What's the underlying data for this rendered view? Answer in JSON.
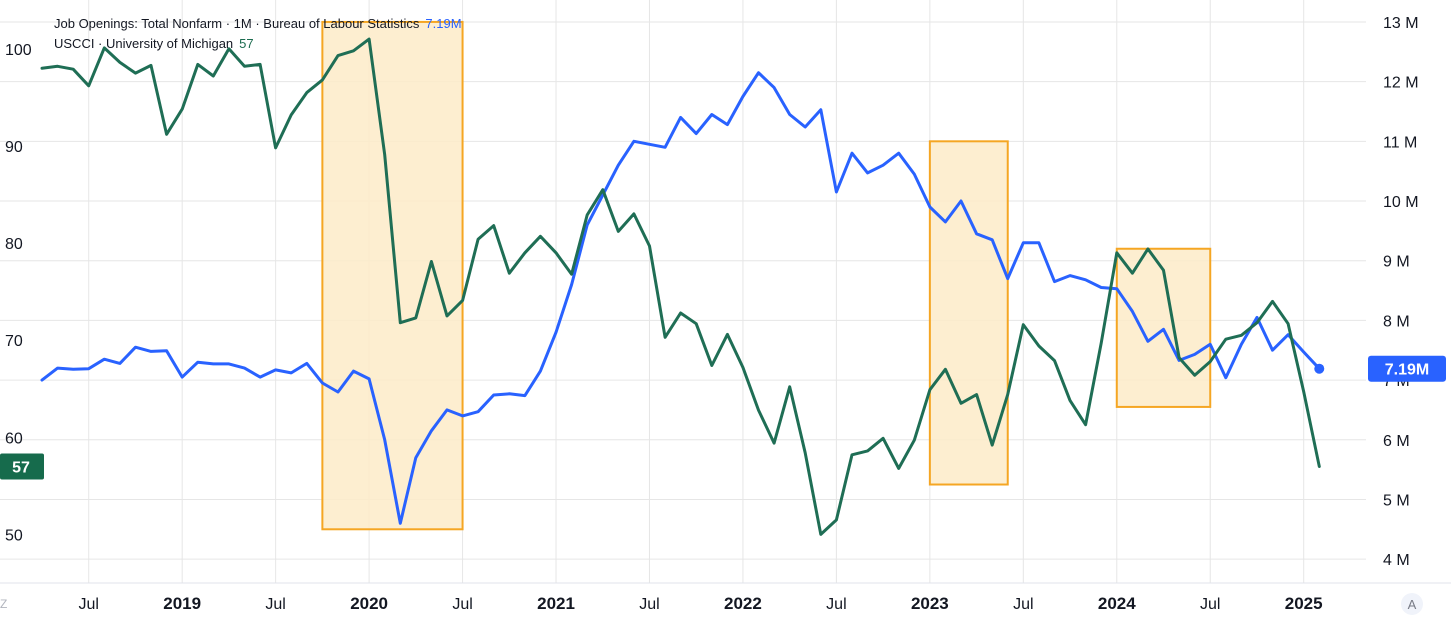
{
  "legend": {
    "job_openings_label": "Job Openings: Total Nonfarm · 1M · Bureau of Labour Statistics",
    "job_openings_value": "7.19M",
    "uscci_label": "USCCI · University of Michigan",
    "uscci_value": "57"
  },
  "corner_left_glyph": "Z",
  "corner_right_glyph": "A",
  "colors": {
    "job_openings": "#2962ff",
    "uscci": "#1f6e55",
    "highlight_fill": "#fdebc8",
    "highlight_stroke": "#f5a623",
    "grid": "#e6e6e6"
  },
  "chart_data": {
    "type": "line",
    "title": "",
    "x_ticks": [
      {
        "date": "2018-07-01",
        "label": "Jul",
        "bold": false
      },
      {
        "date": "2019-01-01",
        "label": "2019",
        "bold": true
      },
      {
        "date": "2019-07-01",
        "label": "Jul",
        "bold": false
      },
      {
        "date": "2020-01-01",
        "label": "2020",
        "bold": true
      },
      {
        "date": "2020-07-01",
        "label": "Jul",
        "bold": false
      },
      {
        "date": "2021-01-01",
        "label": "2021",
        "bold": true
      },
      {
        "date": "2021-07-01",
        "label": "Jul",
        "bold": false
      },
      {
        "date": "2022-01-01",
        "label": "2022",
        "bold": true
      },
      {
        "date": "2022-07-01",
        "label": "Jul",
        "bold": false
      },
      {
        "date": "2023-01-01",
        "label": "2023",
        "bold": true
      },
      {
        "date": "2023-07-01",
        "label": "Jul",
        "bold": false
      },
      {
        "date": "2024-01-01",
        "label": "2024",
        "bold": true
      },
      {
        "date": "2024-07-01",
        "label": "Jul",
        "bold": false
      },
      {
        "date": "2025-01-01",
        "label": "2025",
        "bold": true
      }
    ],
    "x_range": [
      "2018-04-01",
      "2025-05-01"
    ],
    "left_axis": {
      "range": [
        45,
        104
      ],
      "ticks": [
        50,
        60,
        70,
        80,
        90,
        100
      ]
    },
    "right_axis": {
      "range": [
        3.6,
        13.2
      ],
      "ticks": [
        {
          "value": 4,
          "label": "4 M"
        },
        {
          "value": 5,
          "label": "5 M"
        },
        {
          "value": 6,
          "label": "6 M"
        },
        {
          "value": 7,
          "label": "7 M"
        },
        {
          "value": 8,
          "label": "8 M"
        },
        {
          "value": 9,
          "label": "9 M"
        },
        {
          "value": 10,
          "label": "10 M"
        },
        {
          "value": 11,
          "label": "11 M"
        },
        {
          "value": 12,
          "label": "12 M"
        },
        {
          "value": 13,
          "label": "13 M"
        }
      ]
    },
    "grid": true,
    "series": [
      {
        "name": "Job Openings: Total Nonfarm",
        "axis": "right",
        "start": "2018-04",
        "last_label": "7.19M",
        "values": [
          7.0,
          7.2,
          7.18,
          7.19,
          7.35,
          7.28,
          7.55,
          7.48,
          7.49,
          7.05,
          7.3,
          7.27,
          7.27,
          7.2,
          7.05,
          7.17,
          7.12,
          7.28,
          6.95,
          6.8,
          7.15,
          7.02,
          6.0,
          4.6,
          5.7,
          6.15,
          6.5,
          6.4,
          6.47,
          6.75,
          6.77,
          6.74,
          7.15,
          7.8,
          8.6,
          9.6,
          10.1,
          10.6,
          11.0,
          10.95,
          10.9,
          11.4,
          11.13,
          11.45,
          11.28,
          11.75,
          12.15,
          11.9,
          11.45,
          11.24,
          11.53,
          10.15,
          10.8,
          10.47,
          10.6,
          10.8,
          10.45,
          9.9,
          9.65,
          10.0,
          9.45,
          9.35,
          8.7,
          9.3,
          9.3,
          8.65,
          8.75,
          8.68,
          8.55,
          8.53,
          8.15,
          7.65,
          7.85,
          7.33,
          7.43,
          7.6,
          7.04,
          7.6,
          8.05,
          7.5,
          7.76,
          7.47,
          7.19
        ]
      },
      {
        "name": "USCCI",
        "axis": "left",
        "start": "2018-04",
        "last_label": "57",
        "values": [
          98.0,
          98.2,
          97.9,
          96.2,
          100.1,
          98.6,
          97.5,
          98.3,
          91.2,
          93.8,
          98.4,
          97.2,
          100.0,
          98.2,
          98.4,
          89.8,
          93.2,
          95.5,
          96.8,
          99.3,
          99.8,
          101.0,
          89.1,
          71.8,
          72.3,
          78.1,
          72.5,
          74.1,
          80.4,
          81.8,
          76.9,
          79.0,
          80.7,
          79.0,
          76.8,
          82.9,
          85.5,
          81.2,
          83.0,
          79.7,
          70.3,
          72.8,
          71.7,
          67.4,
          70.6,
          67.2,
          62.8,
          59.4,
          65.2,
          58.4,
          50.0,
          51.5,
          58.2,
          58.6,
          59.9,
          56.8,
          59.7,
          64.9,
          67.0,
          63.5,
          64.4,
          59.2,
          64.4,
          71.6,
          69.4,
          67.9,
          63.8,
          61.3,
          69.7,
          79.0,
          76.9,
          79.4,
          77.2,
          68.2,
          66.4,
          67.8,
          70.1,
          70.5,
          71.8,
          74.0,
          71.7,
          64.7,
          57.0
        ]
      }
    ],
    "highlight_boxes": [
      {
        "from": "2019-10",
        "to": "2020-07",
        "right_axis_top": 13.0,
        "right_axis_bottom": 4.5
      },
      {
        "from": "2023-01",
        "to": "2023-06",
        "right_axis_top": 11.0,
        "right_axis_bottom": 5.25
      },
      {
        "from": "2024-01",
        "to": "2024-07",
        "right_axis_top": 9.2,
        "right_axis_bottom": 6.55
      }
    ]
  }
}
